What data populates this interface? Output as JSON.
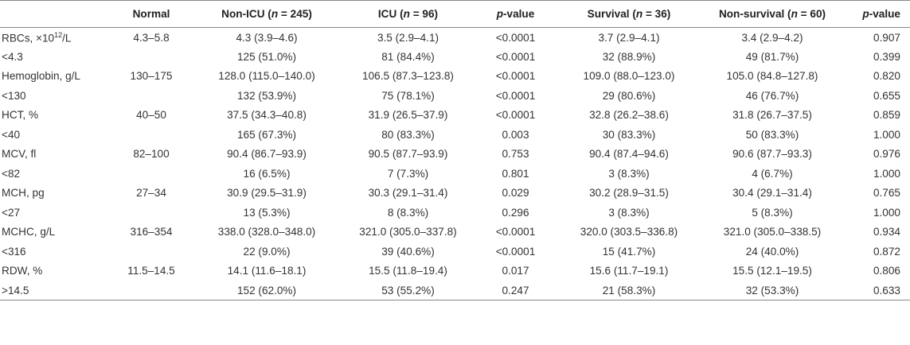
{
  "table": {
    "headers": [
      {
        "text": ""
      },
      {
        "text": "Normal"
      },
      {
        "text": "Non-ICU (",
        "n": "n",
        "rest": " = 245)"
      },
      {
        "text": "ICU (",
        "n": "n",
        "rest": " = 96)"
      },
      {
        "text": "",
        "p": "p",
        "rest": "-value"
      },
      {
        "text": "Survival (",
        "n": "n",
        "rest": " = 36)"
      },
      {
        "text": "Non-survival (",
        "n": "n",
        "rest": " = 60)"
      },
      {
        "text": "",
        "p": "p",
        "rest": "-value"
      }
    ],
    "first_label": {
      "prefix": "RBCs, ×10",
      "sup": "12",
      "suffix": "/L"
    },
    "rows": [
      [
        "RBCs, ×10^12/L",
        "4.3–5.8",
        "4.3 (3.9–4.6)",
        "3.5 (2.9–4.1)",
        "<0.0001",
        "3.7 (2.9–4.1)",
        "3.4 (2.9–4.2)",
        "0.907"
      ],
      [
        "<4.3",
        "",
        "125 (51.0%)",
        "81 (84.4%)",
        "<0.0001",
        "32 (88.9%)",
        "49 (81.7%)",
        "0.399"
      ],
      [
        "Hemoglobin, g/L",
        "130–175",
        "128.0 (115.0–140.0)",
        "106.5 (87.3–123.8)",
        "<0.0001",
        "109.0 (88.0–123.0)",
        "105.0 (84.8–127.8)",
        "0.820"
      ],
      [
        "<130",
        "",
        "132 (53.9%)",
        "75 (78.1%)",
        "<0.0001",
        "29 (80.6%)",
        "46 (76.7%)",
        "0.655"
      ],
      [
        "HCT, %",
        "40–50",
        "37.5 (34.3–40.8)",
        "31.9 (26.5–37.9)",
        "<0.0001",
        "32.8 (26.2–38.6)",
        "31.8 (26.7–37.5)",
        "0.859"
      ],
      [
        "<40",
        "",
        "165 (67.3%)",
        "80 (83.3%)",
        "0.003",
        "30 (83.3%)",
        "50 (83.3%)",
        "1.000"
      ],
      [
        "MCV, fl",
        "82–100",
        "90.4 (86.7–93.9)",
        "90.5 (87.7–93.9)",
        "0.753",
        "90.4 (87.4–94.6)",
        "90.6 (87.7–93.3)",
        "0.976"
      ],
      [
        "<82",
        "",
        "16 (6.5%)",
        "7 (7.3%)",
        "0.801",
        "3 (8.3%)",
        "4 (6.7%)",
        "1.000"
      ],
      [
        "MCH, pg",
        "27–34",
        "30.9 (29.5–31.9)",
        "30.3 (29.1–31.4)",
        "0.029",
        "30.2 (28.9–31.5)",
        "30.4 (29.1–31.4)",
        "0.765"
      ],
      [
        "<27",
        "",
        "13 (5.3%)",
        "8 (8.3%)",
        "0.296",
        "3 (8.3%)",
        "5 (8.3%)",
        "1.000"
      ],
      [
        "MCHC, g/L",
        "316–354",
        "338.0 (328.0–348.0)",
        "321.0 (305.0–337.8)",
        "<0.0001",
        "320.0 (303.5–336.8)",
        "321.0 (305.0–338.5)",
        "0.934"
      ],
      [
        "<316",
        "",
        "22 (9.0%)",
        "39 (40.6%)",
        "<0.0001",
        "15 (41.7%)",
        "24 (40.0%)",
        "0.872"
      ],
      [
        "RDW, %",
        "11.5–14.5",
        "14.1 (11.6–18.1)",
        "15.5 (11.8–19.4)",
        "0.017",
        "15.6 (11.7–19.1)",
        "15.5 (12.1–19.5)",
        "0.806"
      ],
      [
        ">14.5",
        "",
        "152 (62.0%)",
        "53 (55.2%)",
        "0.247",
        "21 (58.3%)",
        "32 (53.3%)",
        "0.633"
      ]
    ]
  }
}
